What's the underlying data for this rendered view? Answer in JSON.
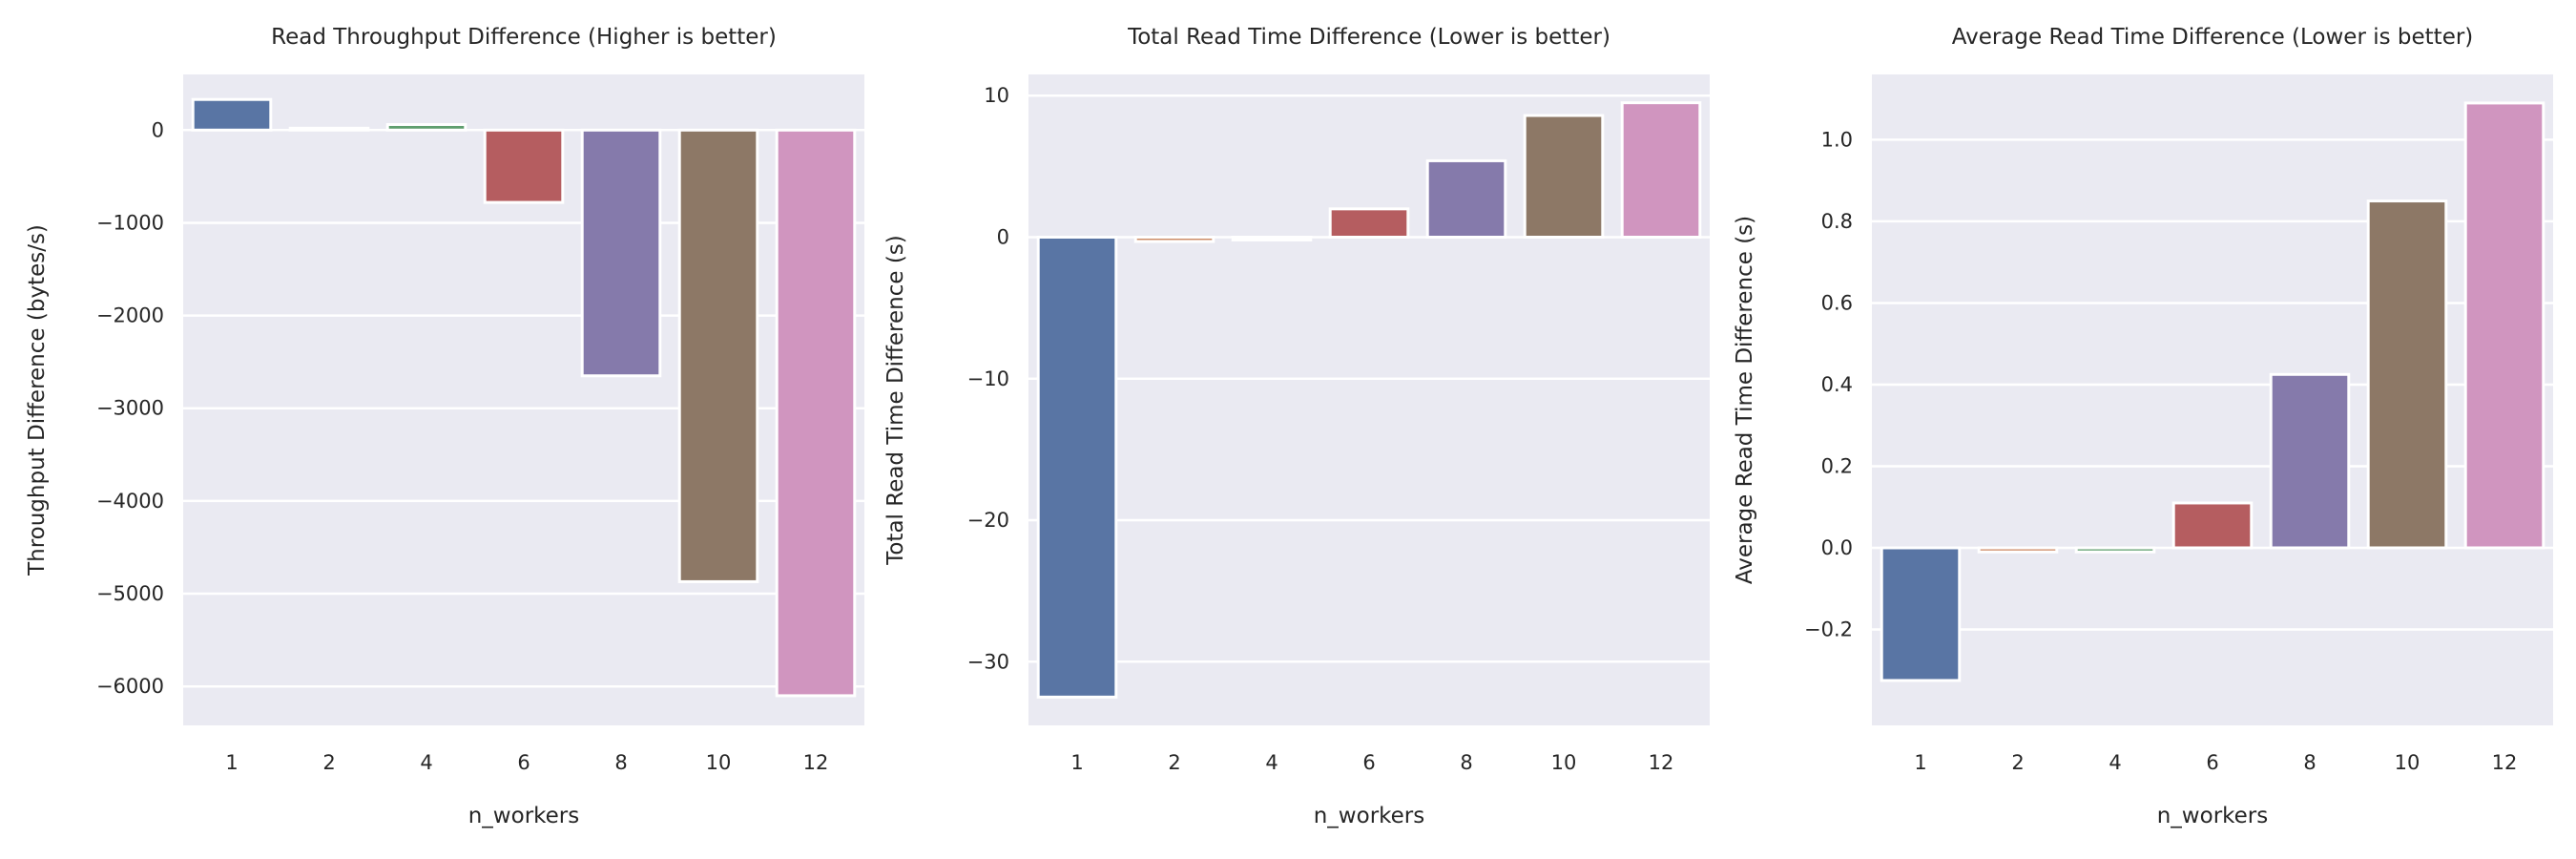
{
  "colors": {
    "background": "#eaeaf2",
    "grid": "#ffffff",
    "palette": [
      "#5975a4",
      "#cc8963",
      "#5f9e6e",
      "#b55d60",
      "#857aab",
      "#8d7866",
      "#d095bf"
    ]
  },
  "chart_data": [
    {
      "type": "bar",
      "title": "Read Throughput Difference (Higher is better)",
      "xlabel": "n_workers",
      "ylabel": "Throughput Difference (bytes/s)",
      "categories": [
        "1",
        "2",
        "4",
        "6",
        "8",
        "10",
        "12"
      ],
      "values": [
        330,
        20,
        60,
        -780,
        -2650,
        -4870,
        -6100
      ],
      "ylim": [
        -6420,
        600
      ],
      "yticks": [
        0,
        -1000,
        -2000,
        -3000,
        -4000,
        -5000,
        -6000
      ],
      "ytick_labels": [
        "0",
        "−1000",
        "−2000",
        "−3000",
        "−4000",
        "−5000",
        "−6000"
      ],
      "grid": true,
      "legend": "none"
    },
    {
      "type": "bar",
      "title": "Total Read Time Difference (Lower is better)",
      "xlabel": "n_workers",
      "ylabel": "Total Read Time Difference (s)",
      "categories": [
        "1",
        "2",
        "4",
        "6",
        "8",
        "10",
        "12"
      ],
      "values": [
        -32.5,
        -0.3,
        -0.2,
        2.0,
        5.4,
        8.6,
        9.5
      ],
      "ylim": [
        -34.5,
        11.5
      ],
      "yticks": [
        10,
        0,
        -10,
        -20,
        -30
      ],
      "ytick_labels": [
        "10",
        "0",
        "−10",
        "−20",
        "−30"
      ],
      "grid": true,
      "legend": "none"
    },
    {
      "type": "bar",
      "title": "Average Read Time Difference (Lower is better)",
      "xlabel": "n_workers",
      "ylabel": "Average Read Time Difference (s)",
      "categories": [
        "1",
        "2",
        "4",
        "6",
        "8",
        "10",
        "12"
      ],
      "values": [
        -0.325,
        -0.01,
        -0.01,
        0.11,
        0.425,
        0.85,
        1.09
      ],
      "ylim": [
        -0.435,
        1.16
      ],
      "yticks": [
        1.0,
        0.8,
        0.6,
        0.4,
        0.2,
        0.0,
        -0.2
      ],
      "ytick_labels": [
        "1.0",
        "0.8",
        "0.6",
        "0.4",
        "0.2",
        "0.0",
        "−0.2"
      ],
      "grid": true,
      "legend": "none"
    }
  ]
}
